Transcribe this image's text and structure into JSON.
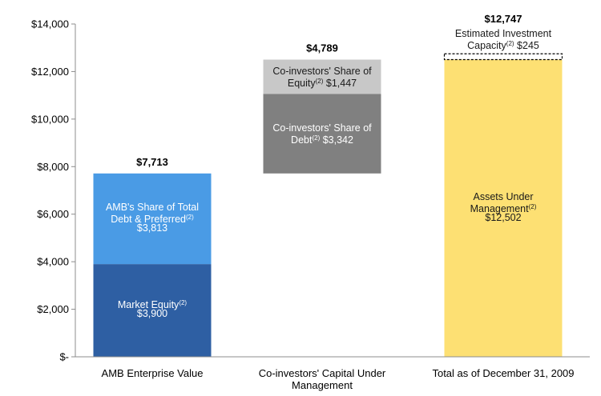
{
  "chart_data": {
    "type": "bar",
    "stacked": true,
    "waterfall": true,
    "title": "",
    "xlabel": "",
    "ylabel": "",
    "ylim": [
      0,
      14000
    ],
    "yticks": [
      0,
      2000,
      4000,
      6000,
      8000,
      10000,
      12000,
      14000
    ],
    "ytick_labels": [
      "$-",
      "$2,000",
      "$4,000",
      "$6,000",
      "$8,000",
      "$10,000",
      "$12,000",
      "$14,000"
    ],
    "categories": [
      {
        "lines": [
          "AMB Enterprise Value"
        ]
      },
      {
        "lines": [
          "Co-investors' Capital Under",
          "Management"
        ]
      },
      {
        "lines": [
          "Total as of December 31, 2009"
        ]
      }
    ],
    "bars": [
      {
        "category_index": 0,
        "total_label": "$7,713",
        "segments": [
          {
            "name": "Market Equity",
            "base": 0,
            "value": 3900,
            "color": "#2e5fa3",
            "label_lines": [
              [
                "Market Equity",
                "(2)",
                ""
              ],
              [
                "$3,900",
                "",
                ""
              ]
            ],
            "text_color": "#ffffff",
            "outlined": false
          },
          {
            "name": "AMB's Share of Total Debt & Preferred",
            "base": 3900,
            "value": 3813,
            "color": "#4a9be5",
            "label_lines": [
              [
                "AMB's Share of Total",
                "",
                ""
              ],
              [
                "Debt & Preferred",
                "(2)",
                ""
              ],
              [
                "$3,813",
                "",
                ""
              ]
            ],
            "text_color": "#ffffff",
            "outlined": false
          }
        ]
      },
      {
        "category_index": 1,
        "total_label": "$4,789",
        "segments": [
          {
            "name": "Co-investors' Share of Debt",
            "base": 7713,
            "value": 3342,
            "color": "#808080",
            "label_lines": [
              [
                "Co-investors' Share of",
                "",
                ""
              ],
              [
                "Debt",
                "(2)",
                " $3,342"
              ]
            ],
            "text_color": "#ffffff",
            "outlined": false
          },
          {
            "name": "Co-investors' Share of Equity",
            "base": 11055,
            "value": 1447,
            "color": "#c8c8c8",
            "label_lines": [
              [
                "Co-investors' Share of",
                "",
                ""
              ],
              [
                "Equity",
                "(2)",
                " $1,447"
              ]
            ],
            "text_color": "#1a1a1a",
            "outlined": false
          }
        ]
      },
      {
        "category_index": 2,
        "total_label": "$12,747",
        "segments": [
          {
            "name": "Assets Under Management",
            "base": 0,
            "value": 12502,
            "color": "#fde073",
            "label_lines": [
              [
                "Assets Under",
                "",
                ""
              ],
              [
                "Management",
                "(2)",
                ""
              ],
              [
                "$12,502",
                "",
                ""
              ]
            ],
            "text_color": "#1a1a1a",
            "outlined": false
          },
          {
            "name": "Estimated Investment Capacity",
            "base": 12502,
            "value": 245,
            "color": "#ffffff",
            "label_lines": [
              [
                "Estimated Investment",
                "",
                ""
              ],
              [
                "Capacity",
                "(2)",
                " $245"
              ]
            ],
            "text_color": "#1a1a1a",
            "outlined": true,
            "label_above": true
          }
        ]
      }
    ]
  }
}
